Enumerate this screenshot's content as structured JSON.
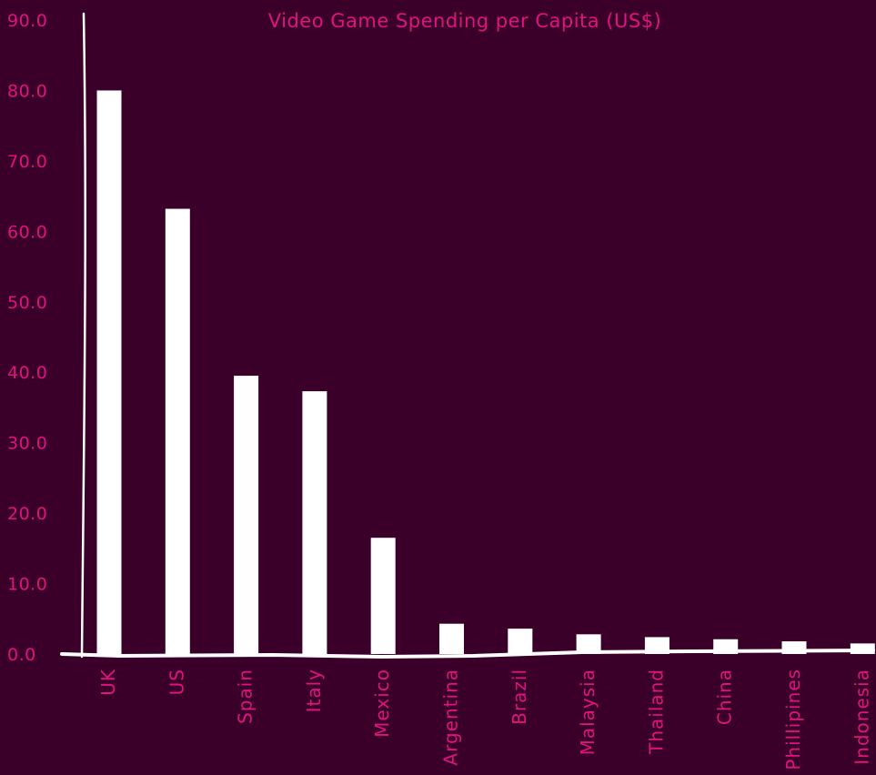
{
  "chart_data": {
    "type": "bar",
    "title": "Video Game Spending per Capita (US$)",
    "xlabel": "",
    "ylabel": "",
    "ylim": [
      0,
      90
    ],
    "yticks": [
      "0.0",
      "10.0",
      "20.0",
      "30.0",
      "40.0",
      "50.0",
      "60.0",
      "70.0",
      "80.0",
      "90.0"
    ],
    "categories": [
      "UK",
      "US",
      "Spain",
      "Italy",
      "Mexico",
      "Argentina",
      "Brazil",
      "Malaysia",
      "Thailand",
      "China",
      "Phillipines",
      "Indonesia"
    ],
    "values": [
      80.0,
      63.2,
      39.5,
      37.3,
      16.5,
      4.3,
      3.6,
      2.8,
      2.4,
      2.1,
      1.8,
      1.5
    ],
    "grid": false,
    "legend": "none",
    "colors": {
      "background": "#3a002a",
      "bar": "#ffffff",
      "text": "#e0137f",
      "axis": "#ffffff"
    }
  }
}
